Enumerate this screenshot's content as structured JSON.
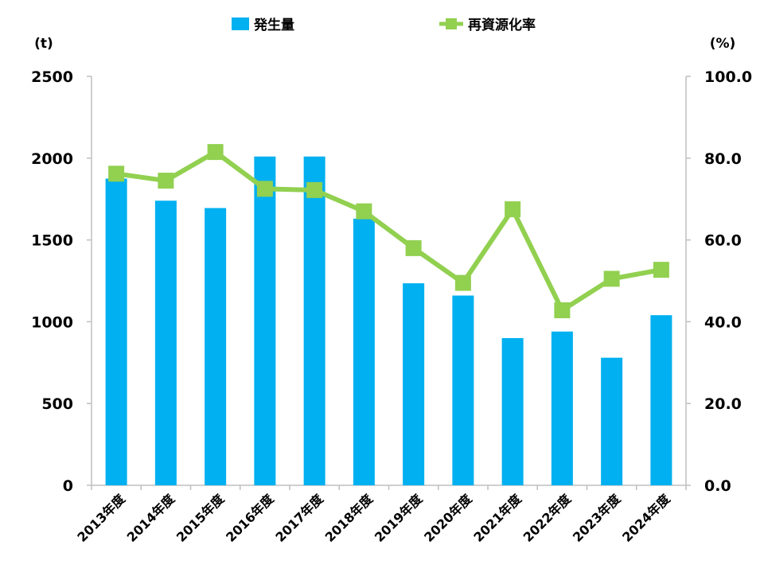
{
  "chart_data": {
    "type": "bar+line",
    "categories": [
      "2013年度",
      "2014年度",
      "2015年度",
      "2016年度",
      "2017年度",
      "2018年度",
      "2019年度",
      "2020年度",
      "2021年度",
      "2022年度",
      "2023年度",
      "2024年度"
    ],
    "series": [
      {
        "name": "発生量",
        "type": "bar",
        "axis": "left",
        "color": "#00B0F0",
        "values": [
          1875,
          1740,
          1695,
          2010,
          2010,
          1630,
          1235,
          1160,
          900,
          940,
          780,
          1040
        ]
      },
      {
        "name": "再資源化率",
        "type": "line",
        "axis": "right",
        "color": "#92D050",
        "values": [
          76.2,
          74.5,
          81.5,
          72.5,
          72.2,
          67.0,
          58.0,
          49.5,
          67.5,
          42.8,
          50.5,
          52.7
        ]
      }
    ],
    "y_left": {
      "unit": "(t)",
      "min": 0,
      "max": 2500,
      "ticks": [
        "0",
        "500",
        "1000",
        "1500",
        "2000",
        "2500"
      ]
    },
    "y_right": {
      "unit": "(%)",
      "min": 0,
      "max": 100,
      "ticks": [
        "0.0",
        "20.0",
        "40.0",
        "60.0",
        "80.0",
        "100.0"
      ]
    },
    "legend": {
      "position": "top",
      "entries": [
        {
          "label": "発生量",
          "color": "#00B0F0"
        },
        {
          "label": "再資源化率",
          "color": "#92D050"
        }
      ]
    },
    "grid": false
  }
}
